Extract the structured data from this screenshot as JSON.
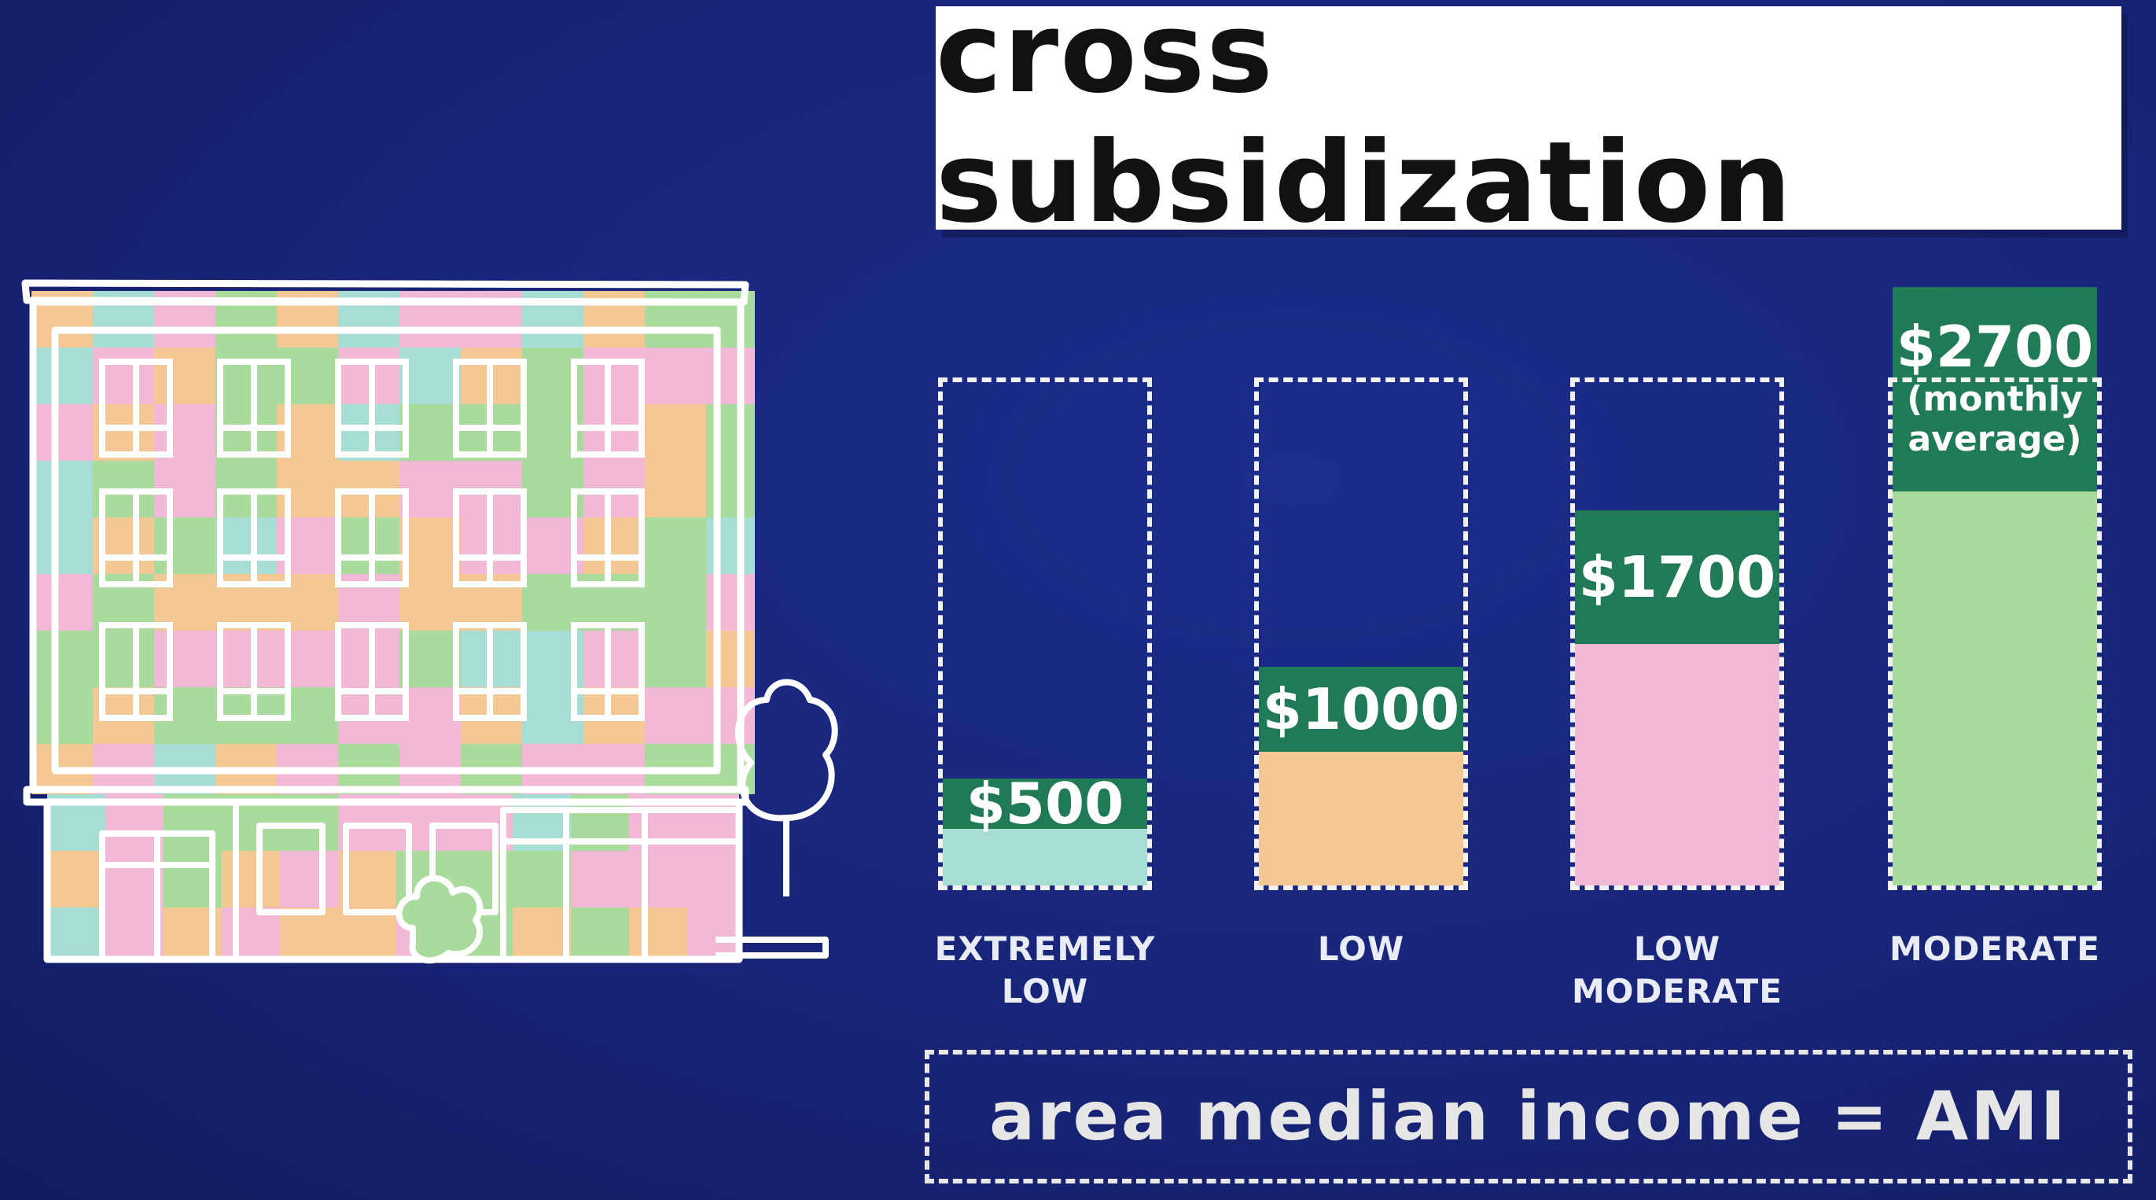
{
  "title": "cross subsidization",
  "bars": [
    {
      "category_lines": [
        "EXTREMELY",
        "LOW"
      ],
      "value_label": "$500",
      "value": 500,
      "fill_color": "#a8ddd4"
    },
    {
      "category_lines": [
        "LOW",
        ""
      ],
      "value_label": "$1000",
      "value": 1000,
      "fill_color": "#f3c894"
    },
    {
      "category_lines": [
        "LOW",
        "MODERATE"
      ],
      "value_label": "$1700",
      "value": 1700,
      "fill_color": "#f1b9d6"
    },
    {
      "category_lines": [
        "MODERATE",
        ""
      ],
      "value_label": "$2700",
      "value": 2700,
      "note_lines": [
        "(monthly",
        "average)"
      ],
      "fill_color": "#a9dc9c"
    }
  ],
  "footer": "area median income = AMI",
  "colors": {
    "background": "#182578",
    "tag_green": "#1f7a55",
    "outline": "#f2f2f2"
  },
  "icons": {
    "building": "apartment-building-illustration",
    "tree": "tree-illustration",
    "bush": "bush-illustration"
  }
}
